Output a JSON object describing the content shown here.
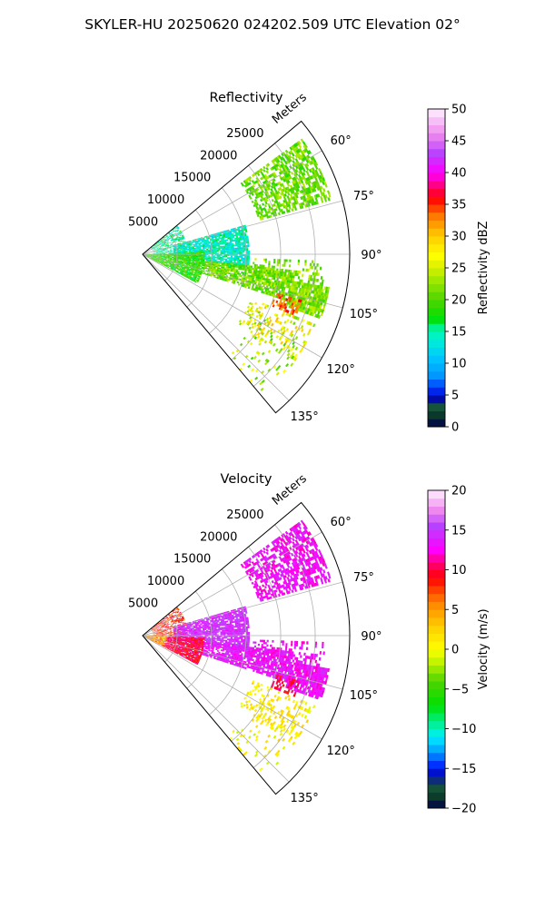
{
  "figure": {
    "suptitle": "SKYLER-HU  20250620  024202.509 UTC Elevation 02°"
  },
  "chart_data": [
    {
      "type": "heatmap",
      "title": "Reflectivity",
      "radial_label": "Meters",
      "radial_ticks": [
        5000,
        10000,
        15000,
        20000,
        25000
      ],
      "radial_tick_labels": [
        "5000",
        "10000",
        "15000",
        "20000",
        "25000"
      ],
      "rmax": 30000,
      "azimuth_range_deg": [
        50,
        140
      ],
      "azimuth_ticks": [
        60,
        75,
        90,
        105,
        120,
        135
      ],
      "azimuth_tick_labels": [
        "60°",
        "75°",
        "90°",
        "105°",
        "120°",
        "135°"
      ],
      "grid": true,
      "colorbar": {
        "label": "Reflectivity dBZ",
        "range": [
          0,
          50
        ],
        "ticks": [
          0,
          5,
          10,
          15,
          20,
          25,
          30,
          35,
          40,
          45,
          50
        ],
        "tick_labels": [
          "0",
          "5",
          "10",
          "15",
          "20",
          "25",
          "30",
          "35",
          "40",
          "45",
          "50"
        ],
        "levels": 40,
        "stops": [
          {
            "v": 0,
            "c": "#00004a"
          },
          {
            "v": 2,
            "c": "#0b3d2a"
          },
          {
            "v": 3.5,
            "c": "#1a5a40"
          },
          {
            "v": 4.5,
            "c": "#0000b4"
          },
          {
            "v": 6,
            "c": "#0032ff"
          },
          {
            "v": 8,
            "c": "#0096ff"
          },
          {
            "v": 11,
            "c": "#00c8ff"
          },
          {
            "v": 14,
            "c": "#00f5d0"
          },
          {
            "v": 16,
            "c": "#00f080"
          },
          {
            "v": 17,
            "c": "#00e000"
          },
          {
            "v": 20,
            "c": "#4fd400"
          },
          {
            "v": 23,
            "c": "#9be800"
          },
          {
            "v": 25,
            "c": "#d8ef00"
          },
          {
            "v": 27,
            "c": "#ffff00"
          },
          {
            "v": 30,
            "c": "#ffcc00"
          },
          {
            "v": 33,
            "c": "#ff8000"
          },
          {
            "v": 36,
            "c": "#ff0000"
          },
          {
            "v": 38,
            "c": "#ff0080"
          },
          {
            "v": 40,
            "c": "#ff00ff"
          },
          {
            "v": 43,
            "c": "#b840ff"
          },
          {
            "v": 46,
            "c": "#ee88ee"
          },
          {
            "v": 50,
            "c": "#fff0ff"
          }
        ]
      },
      "echo_regions": [
        {
          "az": [
            54,
            74
          ],
          "r": [
            17500,
            28500
          ],
          "value": 21,
          "spread": 3,
          "density": 0.62
        },
        {
          "az": [
            50,
            92
          ],
          "r": [
            1500,
            6500
          ],
          "value": 15,
          "spread": 3,
          "density": 0.55
        },
        {
          "az": [
            74,
            98
          ],
          "r": [
            4500,
            15500
          ],
          "value": 14,
          "spread": 3,
          "density": 0.85
        },
        {
          "az": [
            88,
            118
          ],
          "r": [
            0,
            9000
          ],
          "value": 19,
          "spread": 3,
          "density": 0.9
        },
        {
          "az": [
            96,
            108
          ],
          "r": [
            9000,
            22000
          ],
          "value": 21,
          "spread": 3,
          "density": 0.8
        },
        {
          "az": [
            100,
            110
          ],
          "r": [
            22000,
            27500
          ],
          "value": 22,
          "spread": 3,
          "density": 0.85
        },
        {
          "az": [
            92,
            104
          ],
          "r": [
            16000,
            26500
          ],
          "value": 22,
          "spread": 3,
          "density": 0.35
        },
        {
          "az": [
            112,
            126
          ],
          "r": [
            17000,
            27000
          ],
          "value": 26,
          "spread": 5,
          "density": 0.25
        },
        {
          "az": [
            118,
            140
          ],
          "r": [
            19000,
            27000
          ],
          "value": 23,
          "spread": 4,
          "density": 0.1
        },
        {
          "az": [
            106,
            112
          ],
          "r": [
            20000,
            24000
          ],
          "value": 34,
          "spread": 3,
          "density": 0.5
        }
      ]
    },
    {
      "type": "heatmap",
      "title": "Velocity",
      "radial_label": "Meters",
      "radial_ticks": [
        5000,
        10000,
        15000,
        20000,
        25000
      ],
      "radial_tick_labels": [
        "5000",
        "10000",
        "15000",
        "20000",
        "25000"
      ],
      "rmax": 30000,
      "azimuth_range_deg": [
        50,
        140
      ],
      "azimuth_ticks": [
        60,
        75,
        90,
        105,
        120,
        135
      ],
      "azimuth_tick_labels": [
        "60°",
        "75°",
        "90°",
        "105°",
        "120°",
        "135°"
      ],
      "grid": true,
      "colorbar": {
        "label": "Velocity (m/s)",
        "range": [
          -20,
          20
        ],
        "ticks": [
          -20,
          -15,
          -10,
          -5,
          0,
          5,
          10,
          15,
          20
        ],
        "tick_labels": [
          "−20",
          "−15",
          "−10",
          "−5",
          "0",
          "5",
          "10",
          "15",
          "20"
        ],
        "levels": 40,
        "stops": [
          {
            "v": -20,
            "c": "#00004a"
          },
          {
            "v": -18.5,
            "c": "#0b3d2a"
          },
          {
            "v": -17,
            "c": "#1a5a40"
          },
          {
            "v": -16,
            "c": "#0000b4"
          },
          {
            "v": -14.5,
            "c": "#0032ff"
          },
          {
            "v": -13,
            "c": "#0096ff"
          },
          {
            "v": -11,
            "c": "#00f0ff"
          },
          {
            "v": -9,
            "c": "#00f080"
          },
          {
            "v": -7,
            "c": "#00e000"
          },
          {
            "v": -4,
            "c": "#4fd400"
          },
          {
            "v": -2,
            "c": "#b0f000"
          },
          {
            "v": 0,
            "c": "#ffff00"
          },
          {
            "v": 3,
            "c": "#ffcc00"
          },
          {
            "v": 6,
            "c": "#ff8000"
          },
          {
            "v": 9,
            "c": "#ff0000"
          },
          {
            "v": 11,
            "c": "#ff0080"
          },
          {
            "v": 12.5,
            "c": "#ff00ff"
          },
          {
            "v": 15.5,
            "c": "#b840ff"
          },
          {
            "v": 17.5,
            "c": "#ee88ee"
          },
          {
            "v": 20,
            "c": "#fff0ff"
          }
        ]
      },
      "echo_regions": [
        {
          "az": [
            54,
            74
          ],
          "r": [
            17500,
            28500
          ],
          "value": 13,
          "spread": 1.5,
          "density": 0.62
        },
        {
          "az": [
            50,
            92
          ],
          "r": [
            1500,
            6500
          ],
          "value": 8,
          "spread": 3,
          "density": 0.55
        },
        {
          "az": [
            74,
            98
          ],
          "r": [
            4500,
            15500
          ],
          "value": 14.5,
          "spread": 1.5,
          "density": 0.85
        },
        {
          "az": [
            88,
            118
          ],
          "r": [
            0,
            3500
          ],
          "value": 5,
          "spread": 4,
          "density": 0.9
        },
        {
          "az": [
            92,
            118
          ],
          "r": [
            3500,
            9000
          ],
          "value": 10,
          "spread": 2,
          "density": 0.9
        },
        {
          "az": [
            96,
            108
          ],
          "r": [
            9000,
            22000
          ],
          "value": 13.5,
          "spread": 1.5,
          "density": 0.8
        },
        {
          "az": [
            100,
            110
          ],
          "r": [
            22000,
            27500
          ],
          "value": 13,
          "spread": 1.5,
          "density": 0.85
        },
        {
          "az": [
            92,
            104
          ],
          "r": [
            16000,
            26500
          ],
          "value": 13,
          "spread": 1.5,
          "density": 0.35
        },
        {
          "az": [
            112,
            126
          ],
          "r": [
            17000,
            27000
          ],
          "value": 1,
          "spread": 2,
          "density": 0.25
        },
        {
          "az": [
            118,
            140
          ],
          "r": [
            19000,
            27000
          ],
          "value": 0.5,
          "spread": 2,
          "density": 0.1
        },
        {
          "az": [
            106,
            112
          ],
          "r": [
            20000,
            24000
          ],
          "value": 10,
          "spread": 2,
          "density": 0.5
        }
      ]
    }
  ]
}
